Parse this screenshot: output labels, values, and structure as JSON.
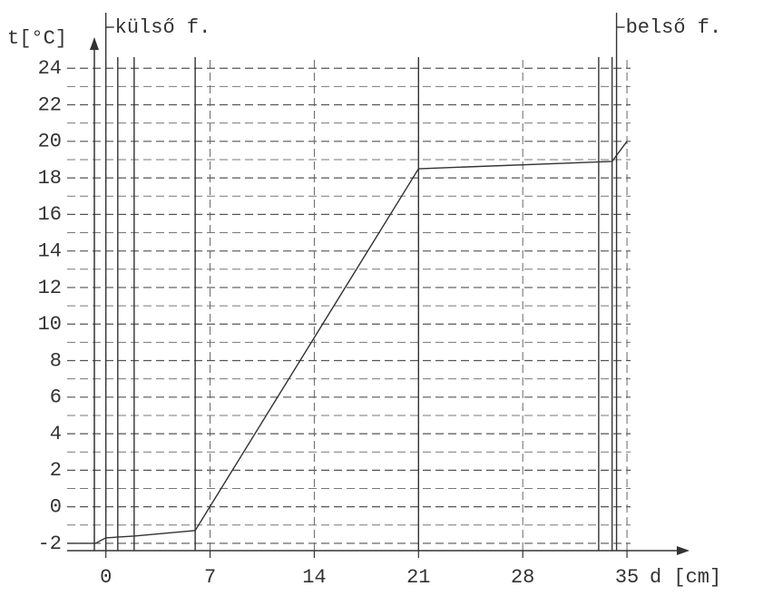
{
  "chart_data": {
    "type": "line",
    "xlabel": "d [cm]",
    "ylabel": "t[°C]",
    "x": [
      -2.6,
      -0.7,
      0,
      1.9,
      6,
      21,
      34,
      35
    ],
    "values": [
      -2,
      -2,
      -1.7,
      -1.6,
      -1.3,
      18.5,
      18.9,
      20
    ],
    "color": "#333333",
    "xlim": [
      -2.6,
      39.2
    ],
    "ylim": [
      -2.4,
      25.7
    ],
    "xticks": [
      0,
      7,
      14,
      21,
      28,
      35
    ],
    "yticks": [
      -2,
      0,
      2,
      4,
      6,
      8,
      10,
      12,
      14,
      16,
      18,
      20,
      22,
      24
    ],
    "grid": true,
    "layers": [
      0,
      0.8,
      1.9,
      6,
      21,
      33.1,
      34,
      34.3
    ],
    "annotations": [
      {
        "text": "külső f.",
        "x": 0
      },
      {
        "text": "belső f.",
        "x": 34.3
      }
    ]
  }
}
